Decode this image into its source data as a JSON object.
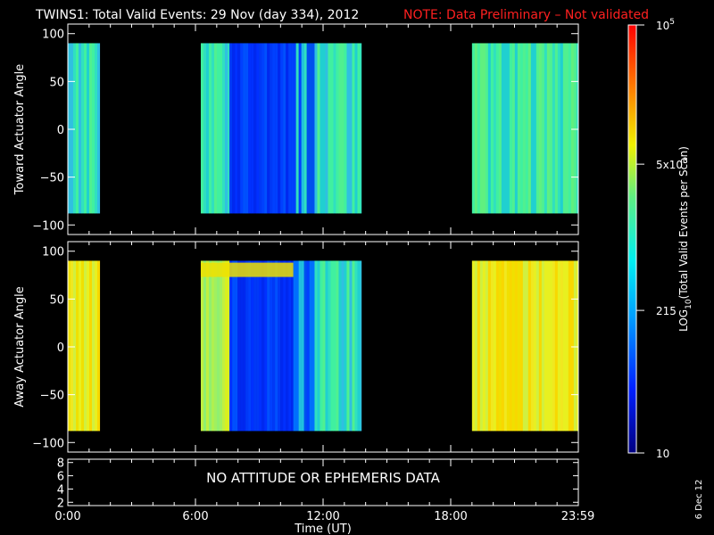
{
  "title": "TWINS1: Total Valid Events: 29 Nov (day 334), 2012",
  "note": "NOTE: Data Preliminary – Not validated",
  "colors": {
    "background": "#000000",
    "foreground": "#ffffff",
    "note": "#ff2020"
  },
  "date_stamp": "6 Dec 12",
  "chart_data": [
    {
      "type": "heatmap",
      "ylabel": "Toward Actuator Angle",
      "ylim": [
        -110,
        110
      ],
      "yticks": [
        "100",
        "50",
        "0",
        "−50",
        "−100"
      ],
      "ytick_values": [
        100,
        50,
        0,
        -50,
        -100
      ],
      "x_range_hours": [
        0,
        24
      ],
      "data_y_range": [
        -88,
        90
      ],
      "blocks": [
        {
          "start_hour": 0.0,
          "end_hour": 1.5,
          "level": "cyan-green"
        },
        {
          "start_hour": 6.25,
          "end_hour": 7.6,
          "level": "cyan-green"
        },
        {
          "start_hour": 7.6,
          "end_hour": 10.6,
          "level": "blue"
        },
        {
          "start_hour": 10.6,
          "end_hour": 11.6,
          "level": "mixed blue-cyan"
        },
        {
          "start_hour": 11.6,
          "end_hour": 13.8,
          "level": "cyan-green"
        },
        {
          "start_hour": 19.0,
          "end_hour": 24.0,
          "level": "green-cyan"
        }
      ]
    },
    {
      "type": "heatmap",
      "ylabel": "Away Actuator Angle",
      "ylim": [
        -110,
        110
      ],
      "yticks": [
        "100",
        "50",
        "0",
        "−50",
        "−100"
      ],
      "ytick_values": [
        100,
        50,
        0,
        -50,
        -100
      ],
      "x_range_hours": [
        0,
        24
      ],
      "data_y_range": [
        -88,
        90
      ],
      "blocks": [
        {
          "start_hour": 0.0,
          "end_hour": 1.5,
          "level": "yellow"
        },
        {
          "start_hour": 6.25,
          "end_hour": 7.6,
          "level": "yellow-green"
        },
        {
          "start_hour": 7.6,
          "end_hour": 10.6,
          "level": "blue"
        },
        {
          "start_hour": 10.6,
          "end_hour": 11.6,
          "level": "mixed blue-cyan"
        },
        {
          "start_hour": 11.6,
          "end_hour": 13.8,
          "level": "cyan-green"
        },
        {
          "start_hour": 19.0,
          "end_hour": 24.0,
          "level": "yellow"
        }
      ]
    },
    {
      "type": "line",
      "yticks": [
        "8",
        "6",
        "4",
        "2"
      ],
      "ytick_values": [
        8,
        6,
        4,
        2
      ],
      "ylim": [
        1.5,
        8.5
      ],
      "message": "NO ATTITUDE OR EPHEMERIS DATA"
    }
  ],
  "x_axis": {
    "ticks": [
      "0:00",
      "6:00",
      "12:00",
      "18:00",
      "23:59"
    ],
    "tick_hours": [
      0,
      6,
      12,
      18,
      23.98
    ],
    "label": "Time (UT)"
  },
  "colorbar": {
    "scale": "log",
    "labels": [
      "10",
      "215",
      "5x10",
      "10"
    ],
    "label_superscripts": [
      "",
      "",
      "3",
      "5"
    ],
    "label_values": [
      10,
      215,
      5000,
      100000
    ],
    "label_text": "LOG",
    "label_subscript": "10",
    "label_rest": "(Total Valid  Events per Scan)",
    "range": [
      10,
      100000
    ]
  }
}
